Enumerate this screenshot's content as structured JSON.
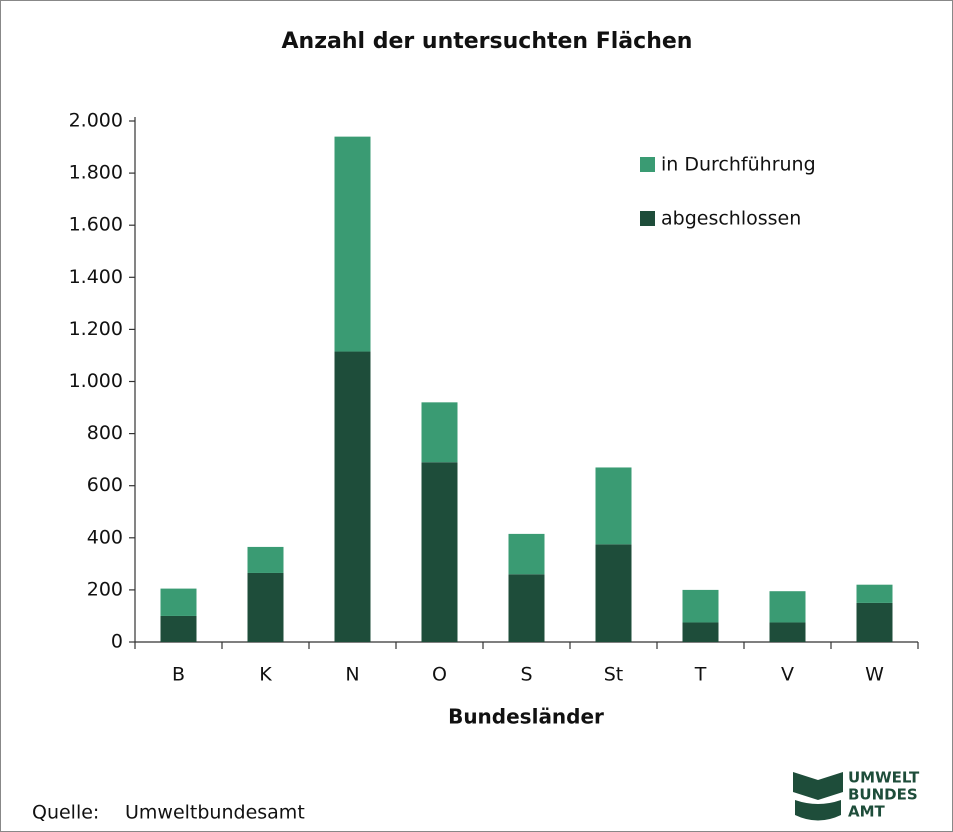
{
  "chart_data": {
    "type": "bar",
    "stacked": true,
    "title": "Anzahl der untersuchten Flächen",
    "x_label": "Bundesländer",
    "categories": [
      "B",
      "K",
      "N",
      "O",
      "S",
      "St",
      "T",
      "V",
      "W"
    ],
    "series": [
      {
        "name": "abgeschlossen",
        "color": "#1e4d3a",
        "values": [
          100,
          265,
          1115,
          690,
          260,
          375,
          75,
          75,
          150
        ]
      },
      {
        "name": "in Durchführung",
        "color": "#3a9b73",
        "values": [
          105,
          100,
          825,
          230,
          155,
          295,
          125,
          120,
          70
        ]
      }
    ],
    "ylim": [
      0,
      2000
    ],
    "yticks": [
      0,
      200,
      400,
      600,
      800,
      {
        "value": 1000,
        "label": "1.000"
      },
      {
        "value": 1200,
        "label": "1.200"
      },
      {
        "value": 1400,
        "label": "1.400"
      },
      {
        "value": 1600,
        "label": "1.600"
      },
      {
        "value": 1800,
        "label": "1.800"
      },
      {
        "value": 2000,
        "label": "2.000"
      }
    ],
    "grid": false,
    "legend": "top-right"
  },
  "source": {
    "label": "Quelle:",
    "text": "Umweltbundesamt"
  },
  "logo": [
    "UMWELT",
    "BUNDES",
    "AMT"
  ]
}
